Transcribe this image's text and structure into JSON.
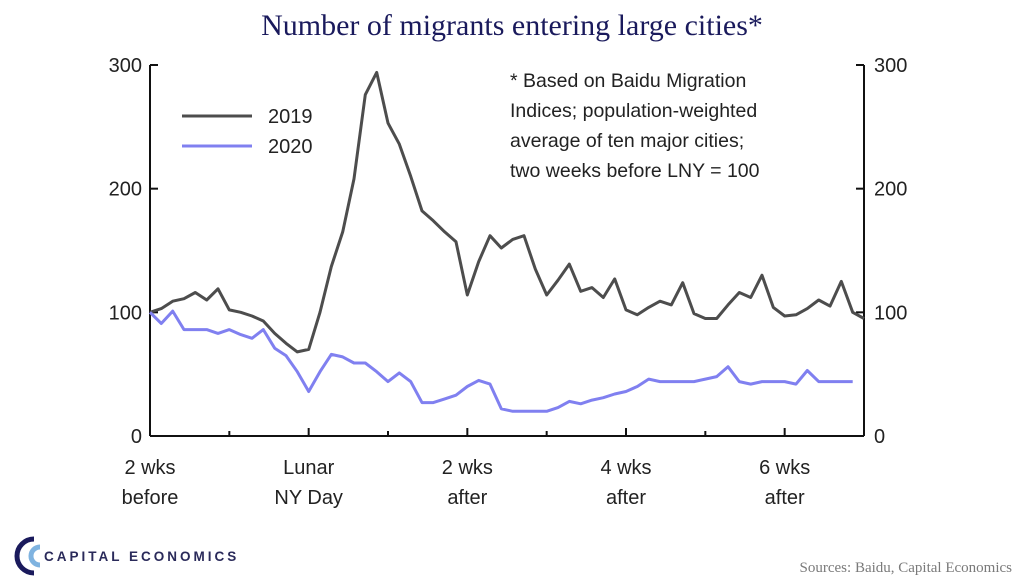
{
  "chart_data": {
    "type": "line",
    "title": "Number of migrants entering large cities*",
    "yticks_left": [
      0,
      100,
      200,
      300
    ],
    "yticks_right": [
      0,
      100,
      200,
      300
    ],
    "ylim": [
      0,
      300
    ],
    "xlim": [
      -14,
      49
    ],
    "x_ticks": [
      {
        "x": -14,
        "line1": "2 wks",
        "line2": "before"
      },
      {
        "x": 0,
        "line1": "Lunar",
        "line2": "NY Day"
      },
      {
        "x": 14,
        "line1": "2 wks",
        "line2": "after"
      },
      {
        "x": 28,
        "line1": "4 wks",
        "line2": "after"
      },
      {
        "x": 42,
        "line1": "6 wks",
        "line2": "after"
      }
    ],
    "series": [
      {
        "name": "2019",
        "color": "#4d4d4d",
        "x": [
          -14,
          -13,
          -12,
          -11,
          -10,
          -9,
          -8,
          -7,
          -6,
          -5,
          -4,
          -3,
          -2,
          -1,
          0,
          1,
          2,
          3,
          4,
          5,
          6,
          7,
          8,
          9,
          10,
          11,
          12,
          13,
          14,
          15,
          16,
          17,
          18,
          19,
          20,
          21,
          22,
          23,
          24,
          25,
          26,
          27,
          28,
          29,
          30,
          31,
          32,
          33,
          34,
          35,
          36,
          37,
          38,
          39,
          40,
          41,
          42,
          43,
          44,
          45,
          46,
          47,
          48,
          49
        ],
        "values": [
          100,
          103,
          109,
          111,
          116,
          110,
          119,
          102,
          100,
          97,
          93,
          83,
          75,
          68,
          70,
          100,
          137,
          165,
          208,
          276,
          294,
          253,
          236,
          210,
          182,
          174,
          165,
          157,
          114,
          141,
          162,
          152,
          159,
          162,
          135,
          114,
          126,
          139,
          117,
          120,
          112,
          127,
          102,
          98,
          104,
          109,
          106,
          124,
          99,
          95,
          95,
          106,
          116,
          112,
          130,
          104,
          97,
          98,
          103,
          110,
          105,
          125,
          100,
          95
        ],
        "legend_label": "2019"
      },
      {
        "name": "2020",
        "color": "#8080f0",
        "x": [
          -14,
          -13,
          -12,
          -11,
          -10,
          -9,
          -8,
          -7,
          -6,
          -5,
          -4,
          -3,
          -2,
          -1,
          0,
          1,
          2,
          3,
          4,
          5,
          6,
          7,
          8,
          9,
          10,
          11,
          12,
          13,
          14,
          15,
          16,
          17,
          18,
          19,
          20,
          21,
          22,
          23,
          24,
          25,
          26,
          27,
          28,
          29,
          30,
          31,
          32,
          33,
          34,
          35,
          36,
          37,
          38,
          39,
          40,
          41,
          42,
          43,
          44,
          45,
          46,
          47,
          48
        ],
        "values": [
          100,
          91,
          101,
          86,
          86,
          86,
          83,
          86,
          82,
          79,
          86,
          71,
          65,
          52,
          36,
          52,
          66,
          64,
          59,
          59,
          52,
          44,
          51,
          44,
          27,
          27,
          30,
          33,
          40,
          45,
          42,
          22,
          20,
          20,
          20,
          20,
          23,
          28,
          26,
          29,
          31,
          34,
          36,
          40,
          46,
          44,
          44,
          44,
          44,
          46,
          48,
          56,
          44,
          42,
          44,
          44,
          44,
          42,
          53,
          44,
          44,
          44,
          44
        ],
        "legend_label": "2020"
      }
    ],
    "legend_position": "top-left",
    "annotation": [
      "* Based on Baidu Migration",
      "Indices; population-weighted",
      "average of ten major cities;",
      "two weeks before LNY = 100"
    ],
    "grid": false
  },
  "footer": {
    "brand": "CAPITAL ECONOMICS",
    "source": "Sources: Baidu, Capital Economics"
  },
  "colors": {
    "title": "#1a1a5c",
    "series_2019": "#4d4d4d",
    "series_2020": "#8080f0"
  }
}
